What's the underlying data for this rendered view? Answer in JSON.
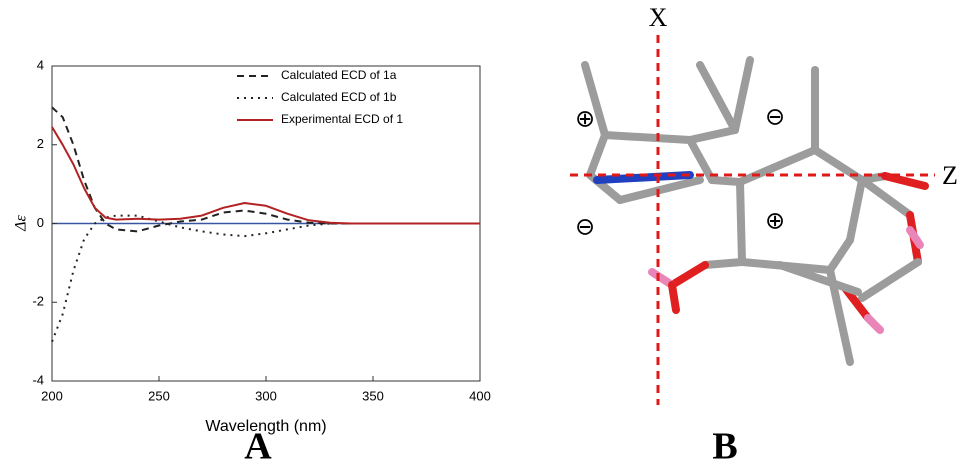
{
  "chart_data": {
    "type": "line",
    "panel_label": "A",
    "xlabel": "Wavelength (nm)",
    "ylabel": "Δε",
    "x": [
      200,
      205,
      210,
      215,
      220,
      225,
      230,
      240,
      250,
      260,
      270,
      280,
      290,
      300,
      310,
      320,
      330,
      340,
      350,
      360,
      370,
      380,
      390,
      400
    ],
    "series": [
      {
        "name": "Calculated ECD of 1a",
        "color": "#222222",
        "dash": "dashed",
        "values": [
          2.95,
          2.7,
          2.0,
          1.1,
          0.4,
          0.0,
          -0.15,
          -0.2,
          -0.05,
          0.05,
          0.1,
          0.28,
          0.33,
          0.25,
          0.1,
          0.02,
          0,
          0,
          0,
          0,
          0,
          0,
          0,
          0
        ]
      },
      {
        "name": "Calculated ECD of 1b",
        "color": "#222222",
        "dash": "dotted",
        "values": [
          -3.0,
          -2.3,
          -1.2,
          -0.4,
          0.0,
          0.15,
          0.2,
          0.2,
          0.05,
          -0.1,
          -0.2,
          -0.28,
          -0.32,
          -0.25,
          -0.15,
          -0.05,
          0,
          0,
          0,
          0,
          0,
          0,
          0,
          0
        ]
      },
      {
        "name": "Experimental ECD of 1",
        "color": "#b22222",
        "dash": "solid",
        "values": [
          2.45,
          2.0,
          1.5,
          0.9,
          0.4,
          0.15,
          0.1,
          0.12,
          0.1,
          0.12,
          0.2,
          0.4,
          0.52,
          0.45,
          0.25,
          0.08,
          0.02,
          0,
          0,
          0,
          0,
          0,
          0,
          0
        ]
      }
    ],
    "xlim": [
      200,
      400
    ],
    "xticks": [
      200,
      250,
      300,
      350,
      400
    ],
    "ylim": [
      -4,
      4
    ],
    "yticks": [
      -4,
      -2,
      0,
      2,
      4
    ],
    "zero_line_color": "#3a55a0",
    "legend": "upper right"
  },
  "diagram": {
    "panel_label": "B",
    "axis_labels": [
      "X",
      "Z"
    ],
    "signs": [
      "⊕",
      "⊖",
      "⊖",
      "⊕"
    ]
  }
}
